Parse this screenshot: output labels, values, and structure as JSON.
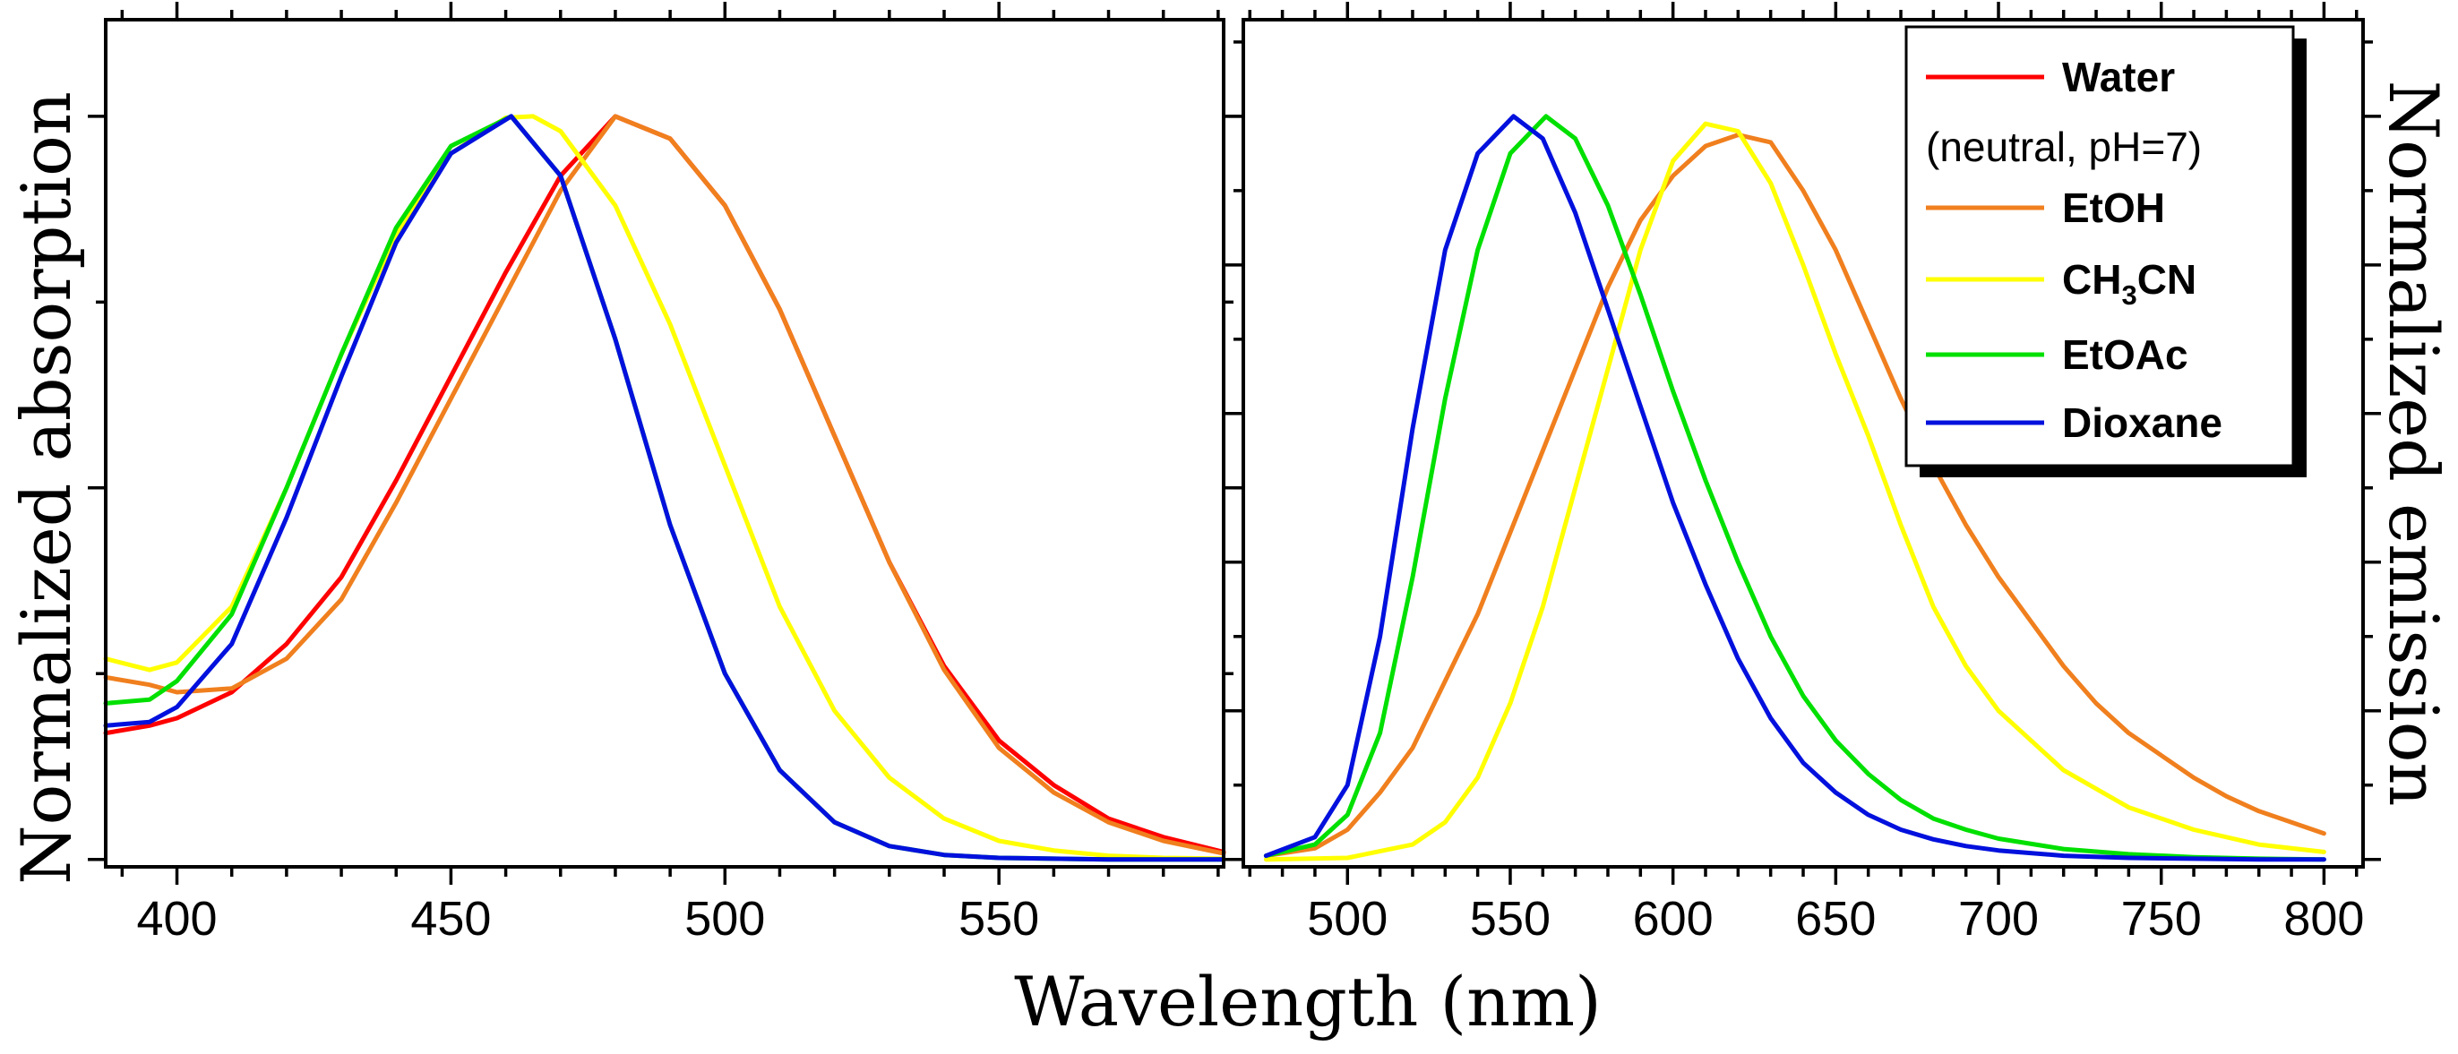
{
  "chart_data": {
    "type": "line",
    "xlabel": "Wavelength (nm)",
    "colors": {
      "Water": "#ff0000",
      "EtOH": "#f07f1e",
      "CH3CN": "#ffff00",
      "EtOAc": "#00e000",
      "Dioxane": "#0010dd"
    },
    "legend": {
      "position": "top-right of emission panel",
      "entries": [
        {
          "key": "Water",
          "label": "Water",
          "note": "(neutral, pH=7)"
        },
        {
          "key": "EtOH",
          "label": "EtOH"
        },
        {
          "key": "CH3CN",
          "label": "CH3CN",
          "label_main": "CH",
          "label_sub": "3",
          "label_tail": "CN"
        },
        {
          "key": "EtOAc",
          "label": "EtOAc"
        },
        {
          "key": "Dioxane",
          "label": "Dioxane"
        }
      ]
    },
    "panels": [
      {
        "id": "absorption",
        "ylabel": "Normalized absorption",
        "xlim": [
          387,
          591
        ],
        "ylim": [
          -0.01,
          1.13
        ],
        "xticks": [
          400,
          450,
          500,
          550
        ],
        "series": [
          {
            "name": "Water",
            "x": [
              387,
              395,
              400,
              410,
              420,
              430,
              440,
              450,
              460,
              470,
              480,
              490,
              500,
              510,
              520,
              530,
              540,
              550,
              560,
              570,
              580,
              591
            ],
            "y": [
              0.17,
              0.18,
              0.19,
              0.225,
              0.29,
              0.38,
              0.51,
              0.65,
              0.79,
              0.92,
              1.0,
              0.97,
              0.88,
              0.74,
              0.57,
              0.4,
              0.26,
              0.16,
              0.1,
              0.055,
              0.03,
              0.01
            ]
          },
          {
            "name": "EtOH",
            "x": [
              387,
              395,
              400,
              410,
              420,
              430,
              440,
              450,
              460,
              470,
              480,
              490,
              500,
              510,
              520,
              530,
              540,
              550,
              560,
              570,
              580,
              591
            ],
            "y": [
              0.245,
              0.235,
              0.225,
              0.23,
              0.27,
              0.35,
              0.48,
              0.62,
              0.76,
              0.9,
              1.0,
              0.97,
              0.88,
              0.74,
              0.57,
              0.4,
              0.255,
              0.15,
              0.09,
              0.05,
              0.025,
              0.008
            ]
          },
          {
            "name": "CH3CN",
            "x": [
              387,
              395,
              400,
              410,
              420,
              430,
              440,
              450,
              460,
              465,
              470,
              480,
              490,
              500,
              510,
              520,
              530,
              540,
              550,
              560,
              570,
              580,
              591
            ],
            "y": [
              0.27,
              0.255,
              0.265,
              0.34,
              0.5,
              0.68,
              0.84,
              0.95,
              0.998,
              1.0,
              0.98,
              0.88,
              0.72,
              0.53,
              0.34,
              0.2,
              0.11,
              0.055,
              0.025,
              0.012,
              0.005,
              0.002,
              0.001
            ]
          },
          {
            "name": "EtOAc",
            "x": [
              387,
              395,
              400,
              410,
              420,
              430,
              440,
              450,
              461,
              470,
              480,
              490,
              500,
              510,
              520,
              530,
              540,
              550,
              560,
              570,
              580,
              591
            ],
            "y": [
              0.21,
              0.215,
              0.24,
              0.33,
              0.5,
              0.68,
              0.85,
              0.96,
              1.0,
              0.92,
              0.7,
              0.45,
              0.25,
              0.12,
              0.05,
              0.018,
              0.006,
              0.002,
              0.001,
              0.0,
              0.0,
              0.0
            ]
          },
          {
            "name": "Dioxane",
            "x": [
              387,
              395,
              400,
              410,
              420,
              430,
              440,
              450,
              461,
              470,
              480,
              490,
              500,
              510,
              520,
              530,
              540,
              550,
              560,
              570,
              580,
              591
            ],
            "y": [
              0.18,
              0.185,
              0.205,
              0.29,
              0.46,
              0.65,
              0.83,
              0.95,
              1.0,
              0.92,
              0.7,
              0.45,
              0.25,
              0.12,
              0.05,
              0.018,
              0.006,
              0.002,
              0.001,
              0.0,
              0.0,
              0.0
            ]
          }
        ]
      },
      {
        "id": "emission",
        "ylabel": "Normalized emission",
        "xlim": [
          468,
          812
        ],
        "ylim": [
          -0.01,
          1.13
        ],
        "xticks": [
          500,
          550,
          600,
          650,
          700,
          750,
          800
        ],
        "series": [
          {
            "name": "EtOH",
            "x": [
              475,
              490,
              500,
              510,
              520,
              530,
              540,
              550,
              560,
              570,
              580,
              590,
              600,
              610,
              620,
              630,
              640,
              650,
              660,
              670,
              680,
              690,
              700,
              710,
              720,
              730,
              740,
              750,
              760,
              770,
              780,
              790,
              800
            ],
            "y": [
              0.005,
              0.015,
              0.04,
              0.09,
              0.15,
              0.24,
              0.33,
              0.44,
              0.55,
              0.66,
              0.77,
              0.86,
              0.92,
              0.96,
              0.975,
              0.965,
              0.9,
              0.82,
              0.72,
              0.62,
              0.53,
              0.45,
              0.38,
              0.32,
              0.26,
              0.21,
              0.17,
              0.14,
              0.11,
              0.085,
              0.065,
              0.05,
              0.035
            ]
          },
          {
            "name": "CH3CN",
            "x": [
              475,
              500,
              520,
              530,
              540,
              550,
              560,
              570,
              580,
              590,
              600,
              610,
              620,
              630,
              640,
              650,
              660,
              670,
              680,
              690,
              700,
              720,
              740,
              760,
              780,
              800
            ],
            "y": [
              0.0,
              0.002,
              0.02,
              0.05,
              0.11,
              0.21,
              0.34,
              0.5,
              0.66,
              0.82,
              0.94,
              0.99,
              0.98,
              0.91,
              0.8,
              0.68,
              0.57,
              0.45,
              0.34,
              0.26,
              0.2,
              0.12,
              0.07,
              0.04,
              0.02,
              0.01
            ]
          },
          {
            "name": "EtOAc",
            "x": [
              475,
              490,
              500,
              510,
              520,
              530,
              540,
              550,
              561,
              570,
              580,
              590,
              600,
              610,
              620,
              630,
              640,
              650,
              660,
              670,
              680,
              690,
              700,
              720,
              740,
              760,
              780,
              800
            ],
            "y": [
              0.005,
              0.02,
              0.06,
              0.17,
              0.38,
              0.62,
              0.82,
              0.95,
              1.0,
              0.97,
              0.88,
              0.76,
              0.63,
              0.51,
              0.4,
              0.3,
              0.22,
              0.16,
              0.115,
              0.08,
              0.055,
              0.04,
              0.028,
              0.014,
              0.007,
              0.003,
              0.001,
              0.0
            ]
          },
          {
            "name": "Dioxane",
            "x": [
              475,
              490,
              500,
              510,
              520,
              530,
              540,
              551,
              560,
              570,
              580,
              590,
              600,
              610,
              620,
              630,
              640,
              650,
              660,
              670,
              680,
              690,
              700,
              720,
              740,
              760,
              780,
              800
            ],
            "y": [
              0.005,
              0.03,
              0.1,
              0.3,
              0.58,
              0.82,
              0.95,
              1.0,
              0.97,
              0.87,
              0.74,
              0.61,
              0.48,
              0.37,
              0.27,
              0.19,
              0.13,
              0.09,
              0.06,
              0.04,
              0.027,
              0.018,
              0.012,
              0.005,
              0.002,
              0.001,
              0.0,
              0.0
            ]
          }
        ]
      }
    ]
  }
}
